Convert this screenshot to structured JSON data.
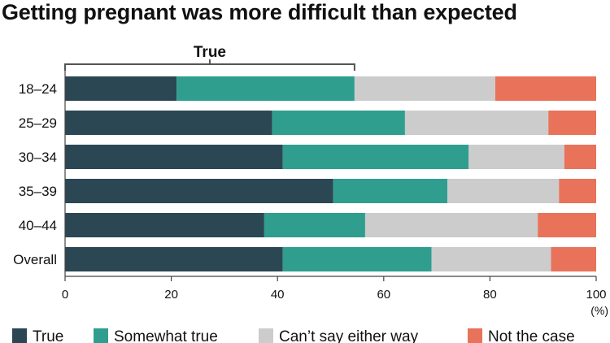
{
  "chart_data": {
    "type": "bar",
    "orientation": "horizontal",
    "stacked": true,
    "title": "Getting pregnant was more difficult than expected",
    "categories": [
      "18–24",
      "25–29",
      "30–34",
      "35–39",
      "40–44",
      "Overall"
    ],
    "series": [
      {
        "name": "True",
        "color": "#2b4753",
        "values": [
          21,
          39,
          41,
          50.5,
          37.5,
          41
        ]
      },
      {
        "name": "Somewhat true",
        "color": "#2f9e8f",
        "values": [
          33.5,
          25,
          35,
          21.5,
          19,
          28
        ]
      },
      {
        "name": "Can’t say either way",
        "color": "#cccccc",
        "values": [
          26.5,
          27,
          18,
          21,
          32.5,
          22.5
        ]
      },
      {
        "name": "Not the case",
        "color": "#e8735a",
        "values": [
          19,
          9,
          6,
          7,
          11,
          8.5
        ]
      }
    ],
    "xlim": [
      0,
      100
    ],
    "xticks": [
      "0",
      "20",
      "40",
      "60",
      "80",
      "100"
    ],
    "xunit": "(%)",
    "bracket": {
      "label": "True",
      "from": 0,
      "to": 54.5
    },
    "legend_position": "bottom",
    "grid": false
  }
}
